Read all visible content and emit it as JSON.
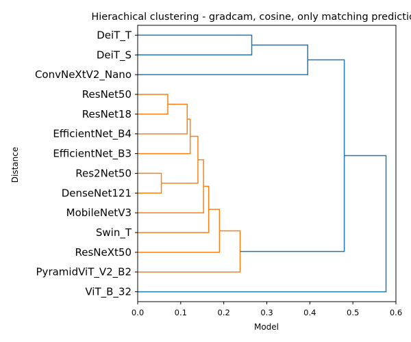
{
  "chart_data": {
    "type": "dendrogram",
    "title": "Hierachical clustering - gradcam, cosine, only matching predictions",
    "xlabel": "Model",
    "ylabel": "Distance",
    "xlim": [
      0,
      0.6
    ],
    "x_ticks": [
      0.0,
      0.1,
      0.2,
      0.3,
      0.4,
      0.5,
      0.6
    ],
    "x_tick_labels": [
      "0.0",
      "0.1",
      "0.2",
      "0.3",
      "0.4",
      "0.5",
      "0.6"
    ],
    "leaves": [
      "DeiT_T",
      "DeiT_S",
      "ConvNeXtV2_Nano",
      "ResNet50",
      "ResNet18",
      "EfficientNet_B4",
      "EfficientNet_B3",
      "Res2Net50",
      "DenseNet121",
      "MobileNetV3",
      "Swin_T",
      "ResNeXt50",
      "PyramidViT_V2_B2",
      "ViT_B_32"
    ],
    "colors": {
      "cluster_a": "#1f77b4",
      "cluster_b": "#ff7f0e",
      "above_threshold": "#1f77b4"
    },
    "merges": [
      {
        "a": 0,
        "b": 1,
        "height": 0.265,
        "group": "cluster_a"
      },
      {
        "a": 14,
        "b": 2,
        "height": 0.395,
        "group": "cluster_a"
      },
      {
        "a": 3,
        "b": 4,
        "height": 0.07,
        "group": "cluster_b"
      },
      {
        "a": 16,
        "b": 5,
        "height": 0.115,
        "group": "cluster_b"
      },
      {
        "a": 17,
        "b": 6,
        "height": 0.122,
        "group": "cluster_b"
      },
      {
        "a": 7,
        "b": 8,
        "height": 0.055,
        "group": "cluster_b"
      },
      {
        "a": 18,
        "b": 19,
        "height": 0.14,
        "group": "cluster_b"
      },
      {
        "a": 20,
        "b": 9,
        "height": 0.153,
        "group": "cluster_b"
      },
      {
        "a": 21,
        "b": 10,
        "height": 0.165,
        "group": "cluster_b"
      },
      {
        "a": 22,
        "b": 11,
        "height": 0.19,
        "group": "cluster_b"
      },
      {
        "a": 23,
        "b": 12,
        "height": 0.238,
        "group": "cluster_b"
      },
      {
        "a": 15,
        "b": 24,
        "height": 0.48,
        "group": "above_threshold"
      },
      {
        "a": 25,
        "b": 13,
        "height": 0.577,
        "group": "above_threshold"
      }
    ]
  }
}
